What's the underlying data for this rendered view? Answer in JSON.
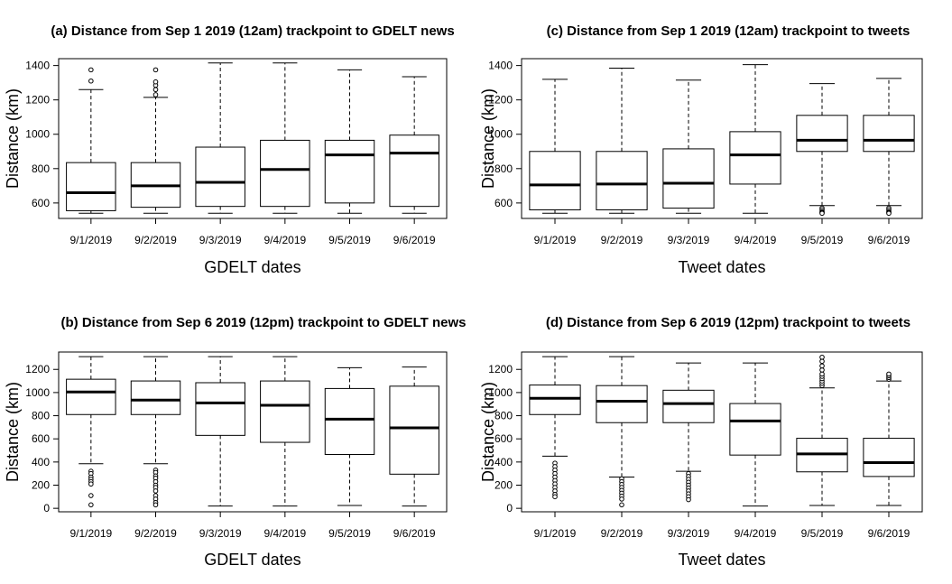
{
  "chart_data": [
    {
      "id": "a",
      "type": "boxplot",
      "title": "(a) Distance from Sep 1 2019 (12am) trackpoint to GDELT news",
      "xlabel": "GDELT dates",
      "ylabel": "Distance (km)",
      "categories": [
        "9/1/2019",
        "9/2/2019",
        "9/3/2019",
        "9/4/2019",
        "9/5/2019",
        "9/6/2019"
      ],
      "ylim": [
        510,
        1440
      ],
      "yticks": [
        600,
        800,
        1000,
        1200,
        1400
      ],
      "boxes": [
        {
          "whisker_low": 540,
          "q1": 555,
          "median": 660,
          "q3": 835,
          "whisker_high": 1260,
          "outliers": [
            1310,
            1375
          ]
        },
        {
          "whisker_low": 540,
          "q1": 575,
          "median": 700,
          "q3": 835,
          "whisker_high": 1215,
          "outliers": [
            1230,
            1260,
            1285,
            1305,
            1375
          ]
        },
        {
          "whisker_low": 540,
          "q1": 580,
          "median": 720,
          "q3": 925,
          "whisker_high": 1415,
          "outliers": []
        },
        {
          "whisker_low": 540,
          "q1": 580,
          "median": 795,
          "q3": 965,
          "whisker_high": 1415,
          "outliers": []
        },
        {
          "whisker_low": 540,
          "q1": 600,
          "median": 880,
          "q3": 965,
          "whisker_high": 1375,
          "outliers": []
        },
        {
          "whisker_low": 540,
          "q1": 580,
          "median": 890,
          "q3": 995,
          "whisker_high": 1335,
          "outliers": []
        }
      ]
    },
    {
      "id": "c",
      "type": "boxplot",
      "title": "(c) Distance from Sep 1 2019 (12am) trackpoint to tweets",
      "xlabel": "Tweet dates",
      "ylabel": "Distance (km)",
      "categories": [
        "9/1/2019",
        "9/2/2019",
        "9/3/2019",
        "9/4/2019",
        "9/5/2019",
        "9/6/2019"
      ],
      "ylim": [
        510,
        1440
      ],
      "yticks": [
        600,
        800,
        1000,
        1200,
        1400
      ],
      "boxes": [
        {
          "whisker_low": 540,
          "q1": 560,
          "median": 705,
          "q3": 900,
          "whisker_high": 1320,
          "outliers": []
        },
        {
          "whisker_low": 540,
          "q1": 560,
          "median": 710,
          "q3": 900,
          "whisker_high": 1385,
          "outliers": []
        },
        {
          "whisker_low": 540,
          "q1": 570,
          "median": 715,
          "q3": 915,
          "whisker_high": 1315,
          "outliers": []
        },
        {
          "whisker_low": 540,
          "q1": 710,
          "median": 880,
          "q3": 1015,
          "whisker_high": 1405,
          "outliers": []
        },
        {
          "whisker_low": 585,
          "q1": 900,
          "median": 965,
          "q3": 1110,
          "whisker_high": 1295,
          "outliers": [
            570,
            560,
            550,
            545,
            540
          ]
        },
        {
          "whisker_low": 585,
          "q1": 900,
          "median": 965,
          "q3": 1110,
          "whisker_high": 1325,
          "outliers": [
            570,
            560,
            550,
            545,
            540
          ]
        }
      ]
    },
    {
      "id": "b",
      "type": "boxplot",
      "title": "(b) Distance from Sep 6 2019 (12pm) trackpoint to GDELT news",
      "xlabel": "GDELT dates",
      "ylabel": "Distance (km)",
      "categories": [
        "9/1/2019",
        "9/2/2019",
        "9/3/2019",
        "9/4/2019",
        "9/5/2019",
        "9/6/2019"
      ],
      "ylim": [
        -30,
        1350
      ],
      "yticks": [
        0,
        200,
        400,
        600,
        800,
        1000,
        1200
      ],
      "boxes": [
        {
          "whisker_low": 385,
          "q1": 810,
          "median": 1005,
          "q3": 1115,
          "whisker_high": 1310,
          "outliers": [
            320,
            300,
            270,
            250,
            230,
            210,
            110,
            30
          ]
        },
        {
          "whisker_low": 385,
          "q1": 810,
          "median": 935,
          "q3": 1100,
          "whisker_high": 1310,
          "outliers": [
            330,
            310,
            280,
            260,
            230,
            200,
            180,
            150,
            110,
            80,
            50,
            30
          ]
        },
        {
          "whisker_low": 20,
          "q1": 630,
          "median": 910,
          "q3": 1085,
          "whisker_high": 1310,
          "outliers": []
        },
        {
          "whisker_low": 20,
          "q1": 570,
          "median": 890,
          "q3": 1100,
          "whisker_high": 1310,
          "outliers": []
        },
        {
          "whisker_low": 25,
          "q1": 465,
          "median": 770,
          "q3": 1035,
          "whisker_high": 1215,
          "outliers": []
        },
        {
          "whisker_low": 20,
          "q1": 295,
          "median": 695,
          "q3": 1055,
          "whisker_high": 1220,
          "outliers": []
        }
      ]
    },
    {
      "id": "d",
      "type": "boxplot",
      "title": "(d) Distance from Sep 6 2019 (12pm) trackpoint to tweets",
      "xlabel": "Tweet dates",
      "ylabel": "Distance (km)",
      "categories": [
        "9/1/2019",
        "9/2/2019",
        "9/3/2019",
        "9/4/2019",
        "9/5/2019",
        "9/6/2019"
      ],
      "ylim": [
        -30,
        1350
      ],
      "yticks": [
        0,
        200,
        400,
        600,
        800,
        1000,
        1200
      ],
      "boxes": [
        {
          "whisker_low": 450,
          "q1": 810,
          "median": 950,
          "q3": 1065,
          "whisker_high": 1310,
          "outliers": [
            390,
            360,
            330,
            300,
            270,
            240,
            210,
            180,
            150,
            120,
            100
          ]
        },
        {
          "whisker_low": 270,
          "q1": 740,
          "median": 925,
          "q3": 1060,
          "whisker_high": 1310,
          "outliers": [
            255,
            230,
            205,
            180,
            155,
            130,
            105,
            80,
            30
          ]
        },
        {
          "whisker_low": 320,
          "q1": 740,
          "median": 905,
          "q3": 1020,
          "whisker_high": 1255,
          "outliers": [
            300,
            275,
            250,
            225,
            200,
            175,
            150,
            125,
            100,
            75
          ]
        },
        {
          "whisker_low": 20,
          "q1": 460,
          "median": 755,
          "q3": 905,
          "whisker_high": 1255,
          "outliers": []
        },
        {
          "whisker_low": 25,
          "q1": 315,
          "median": 470,
          "q3": 605,
          "whisker_high": 1040,
          "outliers": [
            1060,
            1080,
            1100,
            1120,
            1140,
            1160,
            1195,
            1230,
            1270,
            1305
          ]
        },
        {
          "whisker_low": 25,
          "q1": 275,
          "median": 395,
          "q3": 605,
          "whisker_high": 1100,
          "outliers": [
            1115,
            1130,
            1145,
            1160
          ]
        }
      ]
    }
  ]
}
